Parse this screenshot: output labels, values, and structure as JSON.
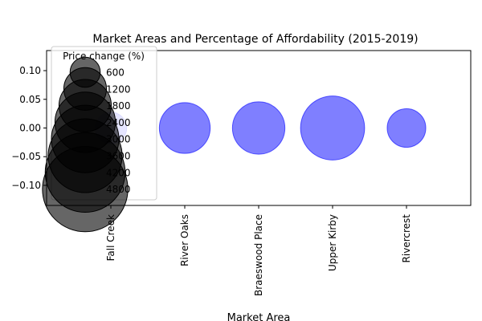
{
  "chart_data": {
    "type": "scatter",
    "title": "Market Areas and Percentage of Affordability (2015-2019)",
    "xlabel": "Market Area",
    "ylabel": "",
    "categories": [
      "Fall Creek",
      "River Oaks",
      "Braeswood Place",
      "Upper Kirby",
      "Rivercrest"
    ],
    "series": [
      {
        "name": "Price change (%)",
        "y": [
          0,
          0,
          0,
          0,
          0
        ],
        "price_change": [
          660,
          1700,
          1810,
          2700,
          980
        ]
      }
    ],
    "ylim": [
      -0.135,
      0.135
    ],
    "yticks": [
      -0.1,
      -0.05,
      0.0,
      0.05,
      0.1
    ],
    "ytick_labels": [
      "−0.10",
      "−0.05",
      "0.00",
      "0.05",
      "0.10"
    ],
    "legend": {
      "title": "Price change (%)",
      "placement": "upper-left",
      "entries": [
        "600",
        "1200",
        "1800",
        "2400",
        "3000",
        "3600",
        "4200",
        "4800"
      ],
      "entry_values": [
        600,
        1200,
        1800,
        2400,
        3000,
        3600,
        4200,
        4800
      ]
    },
    "colors": {
      "bubble_fill": "#0000ff",
      "bubble_opacity": 0.5,
      "legend_fill": "#000000",
      "legend_opacity": 0.6
    }
  }
}
